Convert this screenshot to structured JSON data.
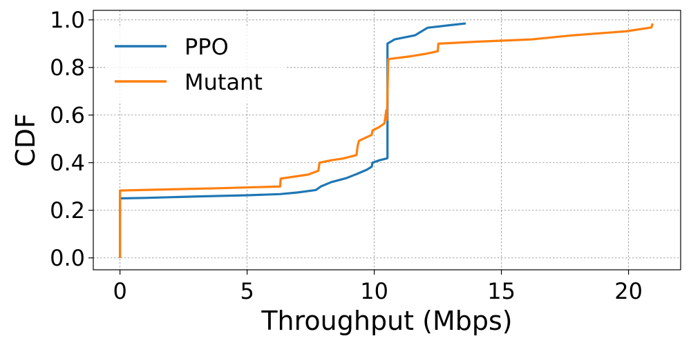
{
  "chart_data": {
    "type": "line",
    "title": "",
    "xlabel": "Throughput (Mbps)",
    "ylabel": "CDF",
    "xlim": [
      -1.05,
      22.05
    ],
    "ylim": [
      -0.05,
      1.04
    ],
    "xticks": [
      0,
      5,
      10,
      15,
      20
    ],
    "yticks": [
      0.0,
      0.2,
      0.4,
      0.6,
      0.8,
      1.0
    ],
    "xtick_labels": [
      "0",
      "5",
      "10",
      "15",
      "20"
    ],
    "ytick_labels": [
      "0.0",
      "0.2",
      "0.4",
      "0.6",
      "0.8",
      "1.0"
    ],
    "grid": true,
    "legend_position": "top-left",
    "series": [
      {
        "name": "PPO",
        "color": "#1f77b4",
        "points": [
          [
            0,
            0.0
          ],
          [
            0,
            0.25
          ],
          [
            1.0,
            0.252
          ],
          [
            3.0,
            0.258
          ],
          [
            5.0,
            0.263
          ],
          [
            6.3,
            0.268
          ],
          [
            7.0,
            0.275
          ],
          [
            7.7,
            0.285
          ],
          [
            7.9,
            0.3
          ],
          [
            8.3,
            0.318
          ],
          [
            8.9,
            0.335
          ],
          [
            9.3,
            0.352
          ],
          [
            9.7,
            0.37
          ],
          [
            9.9,
            0.383
          ],
          [
            9.93,
            0.4
          ],
          [
            10.2,
            0.41
          ],
          [
            10.5,
            0.418
          ],
          [
            10.52,
            0.42
          ],
          [
            10.52,
            0.9
          ],
          [
            10.8,
            0.918
          ],
          [
            11.6,
            0.935
          ],
          [
            12.1,
            0.967
          ],
          [
            13.0,
            0.978
          ],
          [
            13.6,
            0.985
          ]
        ]
      },
      {
        "name": "Mutant",
        "color": "#ff7f0e",
        "points": [
          [
            0,
            0.0
          ],
          [
            0,
            0.283
          ],
          [
            2.0,
            0.288
          ],
          [
            4.0,
            0.293
          ],
          [
            6.3,
            0.3
          ],
          [
            6.32,
            0.333
          ],
          [
            7.4,
            0.35
          ],
          [
            7.8,
            0.366
          ],
          [
            7.85,
            0.4
          ],
          [
            8.3,
            0.41
          ],
          [
            8.8,
            0.418
          ],
          [
            9.3,
            0.432
          ],
          [
            9.35,
            0.472
          ],
          [
            9.4,
            0.492
          ],
          [
            9.9,
            0.517
          ],
          [
            9.93,
            0.535
          ],
          [
            10.2,
            0.55
          ],
          [
            10.4,
            0.565
          ],
          [
            10.45,
            0.6
          ],
          [
            10.47,
            0.62
          ],
          [
            10.5,
            0.58
          ],
          [
            10.55,
            0.835
          ],
          [
            11.5,
            0.848
          ],
          [
            12.0,
            0.857
          ],
          [
            12.5,
            0.868
          ],
          [
            12.52,
            0.9
          ],
          [
            14.0,
            0.908
          ],
          [
            16.2,
            0.918
          ],
          [
            17.8,
            0.935
          ],
          [
            19.9,
            0.952
          ],
          [
            20.9,
            0.968
          ],
          [
            20.95,
            0.985
          ]
        ]
      }
    ]
  }
}
